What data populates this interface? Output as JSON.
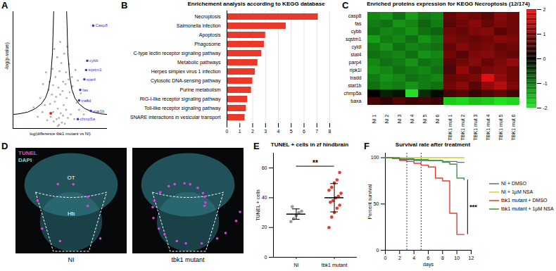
{
  "chart_data": [
    {
      "panel": "A",
      "type": "scatter",
      "x_label": "log(difference tbk1 mutant vs NI)",
      "y_label": "-log(p-value)",
      "tick_labels": false,
      "xlim": [
        -8,
        8
      ],
      "ylim": [
        0,
        10
      ],
      "points": {
        "color": "#b0b0b0",
        "x": [
          -0.2,
          0.3,
          -0.6,
          0.8,
          -1.1,
          1.3,
          -1.6,
          1.8,
          -2.2,
          2.4,
          0.1,
          -0.4,
          0.6,
          -0.9,
          1.1,
          -1.4,
          1.6,
          -2.0,
          2.1,
          -2.6,
          2.8,
          0.0,
          -0.3,
          0.5,
          -0.8,
          1.0,
          -1.3,
          1.5,
          -1.8,
          2.0,
          -2.4,
          2.6,
          0.2,
          -0.5,
          0.7,
          -1.0,
          1.2,
          -3.0,
          3.2,
          -3.4,
          3.5,
          -3.8,
          4.0,
          -0.1,
          0.4,
          -0.7,
          0.9,
          -1.2,
          1.4,
          -1.7,
          -4.5,
          4.6,
          -2.9,
          3.0,
          0.0,
          -0.2,
          0.5,
          -0.4,
          1.0,
          -1.2
        ],
        "y": [
          0.3,
          0.5,
          0.8,
          0.4,
          0.6,
          0.9,
          1.0,
          1.2,
          0.7,
          0.8,
          1.3,
          1.7,
          2.0,
          2.3,
          2.6,
          2.9,
          3.1,
          3.3,
          3.6,
          2.0,
          2.2,
          2.9,
          3.5,
          4.0,
          4.4,
          4.8,
          5.1,
          5.5,
          4.0,
          4.4,
          4.8,
          5.0,
          5.6,
          6.1,
          6.4,
          6.8,
          7.0,
          1.4,
          1.6,
          2.6,
          3.0,
          1.0,
          1.2,
          4.9,
          3.2,
          2.7,
          3.8,
          3.7,
          4.2,
          2.1,
          1.8,
          2.4,
          3.8,
          4.1,
          7.4,
          0.9,
          1.1,
          0.2,
          1.6,
          1.4
        ]
      },
      "highlighted": {
        "color": "#3b3bd0",
        "labels": [
          "Casp8",
          "cybb",
          "sqstm1",
          "stat4",
          "fas",
          "tradd",
          "stat1b",
          "chmp5a"
        ],
        "x": [
          5.6,
          4.6,
          4.4,
          4.1,
          3.4,
          3.2,
          5.2,
          3.0
        ],
        "y": [
          8.8,
          5.8,
          5.0,
          4.2,
          3.3,
          2.4,
          1.5,
          0.8
        ]
      },
      "marked": {
        "color": "#e02020",
        "x": [
          -1.6
        ],
        "y": [
          1.3
        ]
      },
      "threshold_lines": {
        "color": "#000000",
        "lines": [
          {
            "x": [
              1.1,
              1.3,
              1.6,
              2.0,
              2.5,
              3.2,
              4.2,
              5.5,
              7.0,
              8.0
            ],
            "y": [
              10,
              6.5,
              4.5,
              3.3,
              2.6,
              2.1,
              1.7,
              1.4,
              1.25,
              1.2
            ]
          },
          {
            "x": [
              -1.1,
              -1.3,
              -1.6,
              -2.0,
              -2.5,
              -3.2,
              -4.2,
              -5.5,
              -7.0,
              -8.0
            ],
            "y": [
              10,
              6.5,
              4.5,
              3.3,
              2.6,
              2.1,
              1.7,
              1.4,
              1.25,
              1.2
            ]
          }
        ]
      }
    },
    {
      "panel": "B",
      "type": "bar",
      "orientation": "horizontal",
      "title": "Enrichement analysis according to KEGG database",
      "categories": [
        "Necroptosis",
        "Salmonella infection",
        "Apoptosis",
        "Phagosome",
        "C-type lectin receptor signaling pathway",
        "Metabolic pathways",
        "Herpes simplex virus 1 infection",
        "Cytosolic DNA-sensing pathway",
        "Purine metabolism",
        "RIG-I-like receptor signaling pathway",
        "Toll-like receptor signaling pathway",
        "SNARE interactions in vesicular transport"
      ],
      "values": [
        7.1,
        4.6,
        3.0,
        2.9,
        2.7,
        2.4,
        2.2,
        2.0,
        1.9,
        1.6,
        1.5,
        1.4
      ],
      "color": "#e8392a",
      "xlim": [
        0,
        8
      ],
      "xticks": [
        0,
        1,
        2,
        3,
        4,
        5,
        6,
        7,
        8
      ],
      "grid": true
    },
    {
      "panel": "C",
      "type": "heatmap",
      "title": "Enriched proteins expression for KEGG Necroptosis (12/174)",
      "x": [
        "NI 1",
        "NI 2",
        "NI 3",
        "NI 4",
        "NI 5",
        "NI 6",
        "TBK1 mut 1",
        "TBK1 mut 2",
        "TBK1 mut 3",
        "TBK1 mut 4",
        "TBK1 mut 5",
        "TBK1 mut 6"
      ],
      "y": [
        "casp8",
        "fas",
        "cybb",
        "sqstm1",
        "cyldl",
        "stat4",
        "parp4",
        "ripk1l",
        "tradd",
        "stat1b",
        "chmp5a",
        "baxa"
      ],
      "cells": [
        [
          -1.2,
          -1.3,
          -1.0,
          -1.4,
          -1.1,
          -1.2,
          0.9,
          1.1,
          1.0,
          0.8,
          1.2,
          1.0
        ],
        [
          -1.1,
          -1.0,
          -1.3,
          -1.2,
          -0.9,
          -1.1,
          0.8,
          1.0,
          1.2,
          0.9,
          1.1,
          1.0
        ],
        [
          -1.0,
          -1.2,
          -1.1,
          -1.3,
          -1.0,
          -0.9,
          1.0,
          0.9,
          1.1,
          1.2,
          0.8,
          1.0
        ],
        [
          -1.4,
          -1.1,
          -1.2,
          -1.0,
          -1.3,
          -1.1,
          1.1,
          1.0,
          0.9,
          1.0,
          1.2,
          1.1
        ],
        [
          -1.1,
          -1.3,
          -1.0,
          -1.2,
          -1.1,
          -1.0,
          0.9,
          1.2,
          1.0,
          1.1,
          0.9,
          1.0
        ],
        [
          -1.0,
          -1.1,
          -1.2,
          -1.0,
          -1.3,
          -1.2,
          1.0,
          0.8,
          1.1,
          1.2,
          1.0,
          0.9
        ],
        [
          -1.2,
          -1.0,
          -1.1,
          -1.3,
          -1.0,
          -1.1,
          0.8,
          1.0,
          1.2,
          0.9,
          1.1,
          1.3
        ],
        [
          -1.3,
          -1.2,
          -1.0,
          -1.1,
          -1.2,
          -1.0,
          0.7,
          1.3,
          0.9,
          1.1,
          1.2,
          1.0
        ],
        [
          -1.1,
          -1.3,
          -1.2,
          -1.0,
          -1.1,
          -1.2,
          0.9,
          1.0,
          1.1,
          2.0,
          1.3,
          1.0
        ],
        [
          -1.0,
          -1.2,
          -1.1,
          -1.3,
          -1.1,
          -1.0,
          1.0,
          1.2,
          0.8,
          1.3,
          1.6,
          1.1
        ],
        [
          0.0,
          -0.3,
          -0.2,
          -2.0,
          -0.4,
          -0.1,
          0.6,
          0.8,
          0.5,
          0.7,
          0.9,
          0.6
        ],
        [
          0.6,
          0.4,
          0.7,
          0.5,
          0.6,
          0.5,
          -1.8,
          -1.9,
          -1.7,
          -1.8,
          -2.0,
          -1.9
        ]
      ],
      "colorbar": {
        "range": [
          -2,
          2
        ],
        "ticks": [
          -2,
          -1,
          0,
          1,
          2
        ]
      },
      "colors": [
        "#22e022",
        "#000000",
        "#e01010"
      ]
    },
    {
      "panel": "E",
      "type": "strip",
      "title": "TUNEL + cells in zf hindbrain",
      "y_label": "TUNEL + cells",
      "categories": [
        "NI",
        "tbk1 mutant"
      ],
      "values": [
        [
          24,
          26,
          28,
          30,
          31,
          34
        ],
        [
          20,
          27,
          30,
          33,
          35,
          37,
          38,
          40,
          41,
          43,
          45,
          47,
          50,
          52,
          57
        ]
      ],
      "colors": [
        "#999999",
        "#e8392a"
      ],
      "mean": [
        29,
        40
      ],
      "sd": [
        3.5,
        9.5
      ],
      "ylim": [
        0,
        70
      ],
      "yticks": [
        0,
        20,
        40,
        60
      ],
      "annotation": {
        "text": "**",
        "between": [
          "NI",
          "tbk1 mutant"
        ]
      }
    },
    {
      "panel": "F",
      "type": "line",
      "title": "Survival rate after treatment",
      "x_label": "days",
      "y_label": "Percent survival",
      "xlim": [
        0,
        12
      ],
      "xticks": [
        0,
        2,
        4,
        6,
        8,
        10,
        12
      ],
      "ylim": [
        0,
        105
      ],
      "yticks": [
        0,
        50,
        100
      ],
      "line_style": "step",
      "legend": "right",
      "vlines": [
        3,
        5
      ],
      "series": [
        {
          "name": "NI + DMSO",
          "color": "#5a6e9a",
          "x": [
            0,
            2,
            4,
            8,
            10,
            11
          ],
          "values": [
            100,
            98,
            97,
            96,
            95,
            95
          ]
        },
        {
          "name": "NI + 1µM NSA",
          "color": "#c8d42a",
          "x": [
            0,
            11
          ],
          "values": [
            100,
            100
          ]
        },
        {
          "name": "tbk1 mutant + DMSO",
          "color": "#e53c2e",
          "x": [
            0,
            1,
            2,
            3,
            4,
            5,
            6,
            7,
            8,
            9,
            10,
            11
          ],
          "values": [
            100,
            99,
            97,
            96,
            94,
            92,
            90,
            78,
            75,
            40,
            17,
            17
          ]
        },
        {
          "name": "tbk1 mutant + 1µM NSA",
          "color": "#3a9a3a",
          "x": [
            0,
            2,
            4,
            6,
            8,
            9,
            10,
            11
          ],
          "values": [
            100,
            99,
            98,
            97,
            95,
            93,
            78,
            76
          ]
        }
      ],
      "annotation": {
        "text": "***",
        "between": [
          "tbk1 mutant + DMSO",
          "tbk1 mutant + 1µM NSA"
        ]
      }
    }
  ],
  "image_panel": {
    "panel": "D",
    "stains": [
      {
        "text": "TUNEL",
        "color": "#e040e0"
      },
      {
        "text": "DAPI",
        "color": "#5fe0d8"
      }
    ],
    "regions": [
      "OT",
      "Hb"
    ],
    "images": [
      "NI",
      "tbk1 mutant"
    ]
  }
}
